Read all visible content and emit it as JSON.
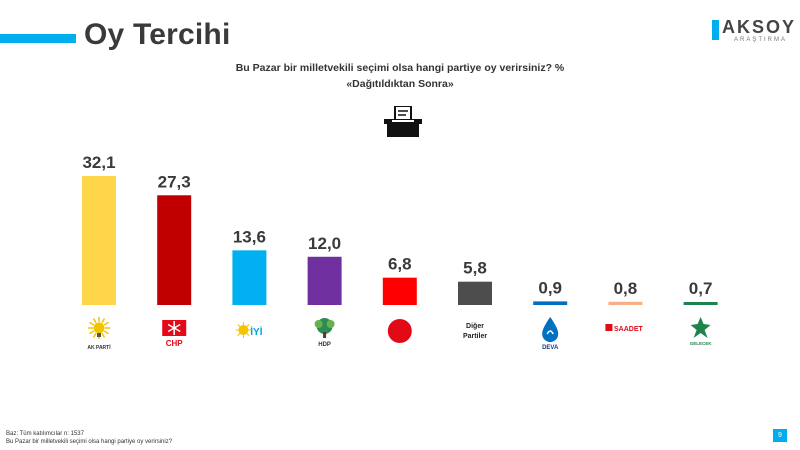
{
  "header": {
    "title": "Oy Tercihi"
  },
  "brand": {
    "name": "AKSOY",
    "sub": "ARAŞTIRMA"
  },
  "question": {
    "line1": "Bu Pazar bir milletvekili seçimi olsa hangi partiye oy verirsiniz? %",
    "line2": "«Dağıtıldıktan Sonra»"
  },
  "footer": {
    "base": "Baz: Tüm katılımcılar  n: 1537",
    "question": "Bu Pazar bir milletvekili seçimi olsa hangi partiye oy verirsiniz?"
  },
  "page_number": "9",
  "colors": {
    "accent": "#00aeef",
    "akp": "#ffd54a",
    "chp": "#c00000",
    "iyi": "#00b0f0",
    "hdp": "#7030a0",
    "mhp": "#ff0000",
    "diger": "#4d4d4d",
    "deva": "#0070c0",
    "saadet": "#f4b183",
    "gelecek": "#1e8449"
  },
  "logo_texts": {
    "akp": "AK PARTİ",
    "chp": "CHP",
    "iyi": "İYİ",
    "hdp": "HDP",
    "diger1": "Diğer",
    "diger2": "Partiler",
    "deva": "DEVA",
    "saadet": "SAADET",
    "gelecek": "GELECEK"
  },
  "chart_data": {
    "type": "bar",
    "categories": [
      "AK PARTİ",
      "CHP",
      "İYİ",
      "HDP",
      "MHP",
      "Diğer Partiler",
      "DEVA",
      "SAADET",
      "GELECEK"
    ],
    "values": [
      32.1,
      27.3,
      13.6,
      12.0,
      6.8,
      5.8,
      0.9,
      0.8,
      0.7
    ],
    "value_labels": [
      "32,1",
      "27,3",
      "13,6",
      "12,0",
      "6,8",
      "5,8",
      "0,9",
      "0,8",
      "0,7"
    ],
    "ylim": [
      0,
      32.1
    ],
    "grid": false,
    "legend": "none"
  }
}
